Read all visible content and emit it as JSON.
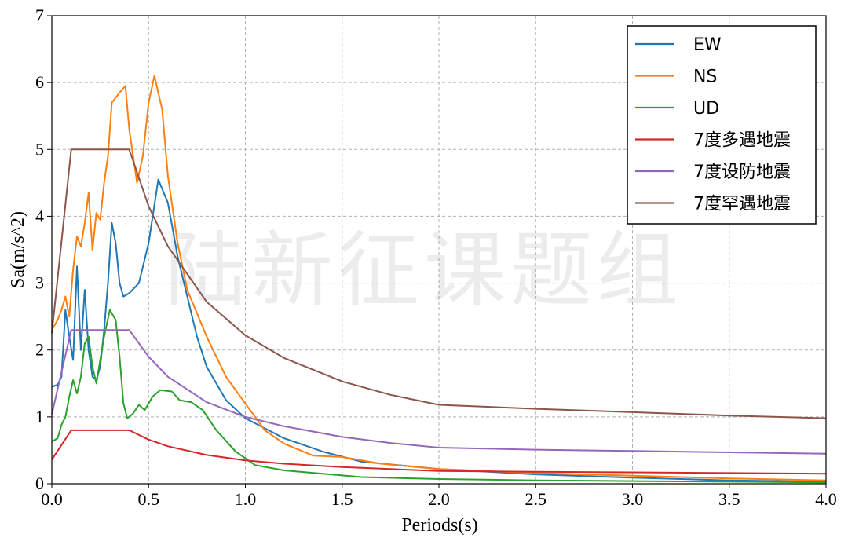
{
  "chart_data": {
    "type": "line",
    "xlabel": "Periods(s)",
    "ylabel": "Sa(m/s^2)",
    "xlim": [
      0,
      4.0
    ],
    "ylim": [
      0,
      7
    ],
    "xticks": [
      "0.0",
      "0.5",
      "1.0",
      "1.5",
      "2.0",
      "2.5",
      "3.0",
      "3.5",
      "4.0"
    ],
    "yticks": [
      "0",
      "1",
      "2",
      "3",
      "4",
      "5",
      "6",
      "7"
    ],
    "grid": true,
    "legend_position": "top-right",
    "watermark": "陆新征课题组",
    "series": [
      {
        "name": "EW",
        "color": "#1f77b4",
        "points": [
          [
            0,
            1.45
          ],
          [
            0.03,
            1.48
          ],
          [
            0.05,
            1.6
          ],
          [
            0.07,
            2.6
          ],
          [
            0.09,
            2.2
          ],
          [
            0.11,
            1.85
          ],
          [
            0.13,
            3.25
          ],
          [
            0.15,
            2.0
          ],
          [
            0.17,
            2.9
          ],
          [
            0.19,
            2.0
          ],
          [
            0.21,
            1.6
          ],
          [
            0.23,
            1.55
          ],
          [
            0.25,
            1.75
          ],
          [
            0.27,
            2.3
          ],
          [
            0.29,
            3.0
          ],
          [
            0.31,
            3.9
          ],
          [
            0.33,
            3.6
          ],
          [
            0.35,
            3.0
          ],
          [
            0.37,
            2.8
          ],
          [
            0.4,
            2.85
          ],
          [
            0.45,
            3.0
          ],
          [
            0.5,
            3.6
          ],
          [
            0.55,
            4.55
          ],
          [
            0.6,
            4.2
          ],
          [
            0.65,
            3.4
          ],
          [
            0.7,
            2.8
          ],
          [
            0.75,
            2.2
          ],
          [
            0.8,
            1.75
          ],
          [
            0.9,
            1.25
          ],
          [
            1.0,
            0.98
          ],
          [
            1.2,
            0.68
          ],
          [
            1.4,
            0.48
          ],
          [
            1.6,
            0.33
          ],
          [
            2.0,
            0.22
          ],
          [
            2.5,
            0.14
          ],
          [
            3.0,
            0.09
          ],
          [
            3.5,
            0.05
          ],
          [
            4.0,
            0.03
          ]
        ]
      },
      {
        "name": "NS",
        "color": "#ff7f0e",
        "points": [
          [
            0,
            2.3
          ],
          [
            0.03,
            2.45
          ],
          [
            0.05,
            2.6
          ],
          [
            0.07,
            2.8
          ],
          [
            0.09,
            2.5
          ],
          [
            0.11,
            3.2
          ],
          [
            0.13,
            3.7
          ],
          [
            0.15,
            3.55
          ],
          [
            0.17,
            3.9
          ],
          [
            0.19,
            4.35
          ],
          [
            0.21,
            3.5
          ],
          [
            0.23,
            4.05
          ],
          [
            0.25,
            3.95
          ],
          [
            0.27,
            4.5
          ],
          [
            0.29,
            4.9
          ],
          [
            0.31,
            5.7
          ],
          [
            0.35,
            5.85
          ],
          [
            0.38,
            5.95
          ],
          [
            0.4,
            5.3
          ],
          [
            0.44,
            4.5
          ],
          [
            0.47,
            4.9
          ],
          [
            0.5,
            5.7
          ],
          [
            0.53,
            6.1
          ],
          [
            0.57,
            5.6
          ],
          [
            0.6,
            4.6
          ],
          [
            0.65,
            3.6
          ],
          [
            0.7,
            2.9
          ],
          [
            0.8,
            2.2
          ],
          [
            0.9,
            1.6
          ],
          [
            1.0,
            1.2
          ],
          [
            1.1,
            0.8
          ],
          [
            1.2,
            0.6
          ],
          [
            1.35,
            0.42
          ],
          [
            1.5,
            0.4
          ],
          [
            1.7,
            0.3
          ],
          [
            2.0,
            0.22
          ],
          [
            2.5,
            0.16
          ],
          [
            3.0,
            0.12
          ],
          [
            3.5,
            0.08
          ],
          [
            4.0,
            0.05
          ]
        ]
      },
      {
        "name": "UD",
        "color": "#2ca02c",
        "points": [
          [
            0,
            0.63
          ],
          [
            0.03,
            0.68
          ],
          [
            0.05,
            0.88
          ],
          [
            0.07,
            1.0
          ],
          [
            0.09,
            1.3
          ],
          [
            0.11,
            1.55
          ],
          [
            0.13,
            1.35
          ],
          [
            0.15,
            1.6
          ],
          [
            0.17,
            2.1
          ],
          [
            0.19,
            2.2
          ],
          [
            0.21,
            1.75
          ],
          [
            0.23,
            1.5
          ],
          [
            0.25,
            1.85
          ],
          [
            0.27,
            2.2
          ],
          [
            0.3,
            2.6
          ],
          [
            0.33,
            2.45
          ],
          [
            0.35,
            1.9
          ],
          [
            0.37,
            1.2
          ],
          [
            0.39,
            0.98
          ],
          [
            0.42,
            1.05
          ],
          [
            0.45,
            1.18
          ],
          [
            0.48,
            1.1
          ],
          [
            0.52,
            1.3
          ],
          [
            0.56,
            1.4
          ],
          [
            0.62,
            1.38
          ],
          [
            0.66,
            1.25
          ],
          [
            0.72,
            1.22
          ],
          [
            0.78,
            1.1
          ],
          [
            0.85,
            0.8
          ],
          [
            0.95,
            0.48
          ],
          [
            1.05,
            0.28
          ],
          [
            1.2,
            0.2
          ],
          [
            1.4,
            0.15
          ],
          [
            1.6,
            0.1
          ],
          [
            2.0,
            0.07
          ],
          [
            2.5,
            0.05
          ],
          [
            3.0,
            0.04
          ],
          [
            3.5,
            0.03
          ],
          [
            4.0,
            0.02
          ]
        ]
      },
      {
        "name": "7度多遇地震",
        "color": "#d62728",
        "points": [
          [
            0,
            0.36
          ],
          [
            0.1,
            0.8
          ],
          [
            0.4,
            0.8
          ],
          [
            0.5,
            0.66
          ],
          [
            0.6,
            0.56
          ],
          [
            0.8,
            0.43
          ],
          [
            1.0,
            0.35
          ],
          [
            1.2,
            0.3
          ],
          [
            1.5,
            0.25
          ],
          [
            1.75,
            0.22
          ],
          [
            2.0,
            0.19
          ],
          [
            2.5,
            0.18
          ],
          [
            3.0,
            0.17
          ],
          [
            3.5,
            0.16
          ],
          [
            4.0,
            0.15
          ]
        ]
      },
      {
        "name": "7度设防地震",
        "color": "#9467bd",
        "points": [
          [
            0,
            1.04
          ],
          [
            0.1,
            2.3
          ],
          [
            0.4,
            2.3
          ],
          [
            0.5,
            1.9
          ],
          [
            0.6,
            1.6
          ],
          [
            0.8,
            1.22
          ],
          [
            1.0,
            1.0
          ],
          [
            1.2,
            0.86
          ],
          [
            1.5,
            0.7
          ],
          [
            1.75,
            0.61
          ],
          [
            2.0,
            0.54
          ],
          [
            2.5,
            0.51
          ],
          [
            3.0,
            0.49
          ],
          [
            3.5,
            0.47
          ],
          [
            4.0,
            0.45
          ]
        ]
      },
      {
        "name": "7度罕遇地震",
        "color": "#8c564b",
        "points": [
          [
            0,
            2.25
          ],
          [
            0.1,
            5.0
          ],
          [
            0.4,
            5.0
          ],
          [
            0.5,
            4.15
          ],
          [
            0.6,
            3.55
          ],
          [
            0.8,
            2.72
          ],
          [
            1.0,
            2.22
          ],
          [
            1.2,
            1.88
          ],
          [
            1.5,
            1.53
          ],
          [
            1.75,
            1.33
          ],
          [
            2.0,
            1.18
          ],
          [
            2.5,
            1.12
          ],
          [
            3.0,
            1.07
          ],
          [
            3.5,
            1.02
          ],
          [
            4.0,
            0.98
          ]
        ]
      }
    ]
  }
}
